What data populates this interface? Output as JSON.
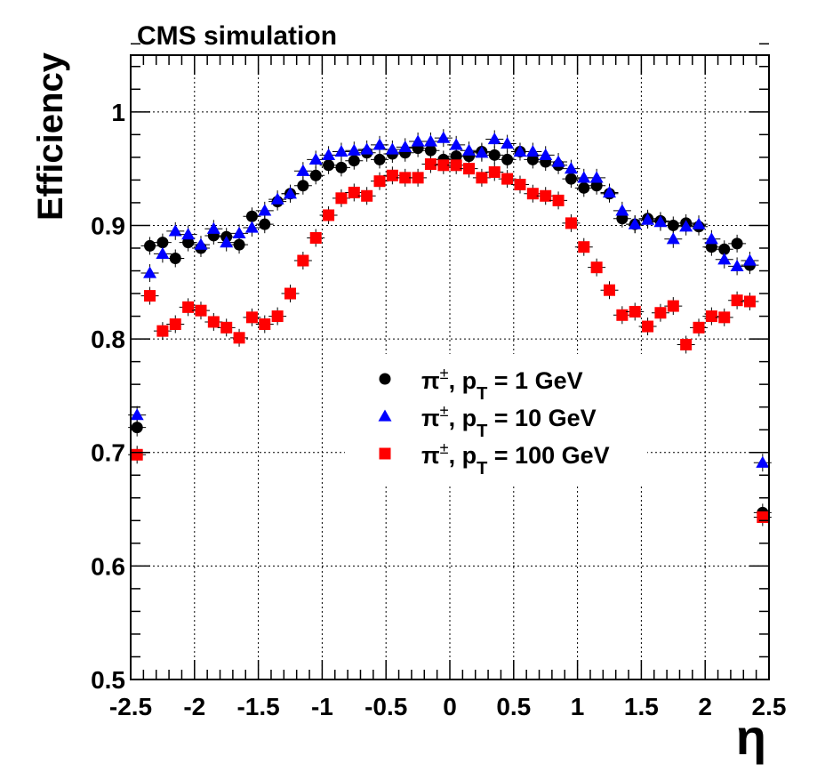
{
  "chart_data": {
    "type": "scatter",
    "title": "CMS simulation",
    "xlabel": "η",
    "ylabel": "Efficiency",
    "xlim": [
      -2.5,
      2.5
    ],
    "ylim": [
      0.5,
      1.05
    ],
    "grid": true,
    "legend_position": "center-right",
    "x_ticks": [
      "-2.5",
      "-2",
      "-1.5",
      "-1",
      "-0.5",
      "0",
      "0.5",
      "1",
      "1.5",
      "2",
      "2.5"
    ],
    "x_tick_values": [
      -2.5,
      -2,
      -1.5,
      -1,
      -0.5,
      0,
      0.5,
      1,
      1.5,
      2,
      2.5
    ],
    "y_ticks": [
      "0.5",
      "0.6",
      "0.7",
      "0.8",
      "0.9",
      "1"
    ],
    "y_tick_values": [
      0.5,
      0.6,
      0.7,
      0.8,
      0.9,
      1.0
    ],
    "x": [
      -2.45,
      -2.35,
      -2.25,
      -2.15,
      -2.05,
      -1.95,
      -1.85,
      -1.75,
      -1.65,
      -1.55,
      -1.45,
      -1.35,
      -1.25,
      -1.15,
      -1.05,
      -0.95,
      -0.85,
      -0.75,
      -0.65,
      -0.55,
      -0.45,
      -0.35,
      -0.25,
      -0.15,
      -0.05,
      0.05,
      0.15,
      0.25,
      0.35,
      0.45,
      0.55,
      0.65,
      0.75,
      0.85,
      0.95,
      1.05,
      1.15,
      1.25,
      1.35,
      1.45,
      1.55,
      1.65,
      1.75,
      1.85,
      1.95,
      2.05,
      2.15,
      2.25,
      2.35,
      2.45
    ],
    "series": [
      {
        "name_prefix": "π",
        "name_sup": "±",
        "name_p": ", p",
        "name_sub": "T",
        "name_suffix": " = 1 GeV",
        "marker": "circle",
        "color": "#000000",
        "values": [
          0.722,
          0.882,
          0.885,
          0.871,
          0.885,
          0.88,
          0.891,
          0.89,
          0.883,
          0.908,
          0.901,
          0.921,
          0.928,
          0.935,
          0.944,
          0.953,
          0.951,
          0.957,
          0.964,
          0.958,
          0.963,
          0.964,
          0.968,
          0.966,
          0.958,
          0.961,
          0.961,
          0.965,
          0.962,
          0.958,
          0.965,
          0.958,
          0.956,
          0.953,
          0.941,
          0.933,
          0.935,
          0.928,
          0.906,
          0.901,
          0.906,
          0.904,
          0.9,
          0.902,
          0.899,
          0.881,
          0.879,
          0.884,
          0.865,
          0.647
        ]
      },
      {
        "name_prefix": "π",
        "name_sup": "±",
        "name_p": ", p",
        "name_sub": "T",
        "name_suffix": " = 10 GeV",
        "marker": "triangle",
        "color": "#0000ff",
        "values": [
          0.733,
          0.858,
          0.875,
          0.895,
          0.892,
          0.883,
          0.897,
          0.885,
          0.893,
          0.898,
          0.913,
          0.923,
          0.928,
          0.948,
          0.958,
          0.962,
          0.965,
          0.966,
          0.967,
          0.971,
          0.967,
          0.969,
          0.974,
          0.974,
          0.977,
          0.971,
          0.966,
          0.964,
          0.976,
          0.972,
          0.965,
          0.965,
          0.962,
          0.956,
          0.95,
          0.942,
          0.942,
          0.929,
          0.913,
          0.901,
          0.905,
          0.903,
          0.888,
          0.899,
          0.901,
          0.888,
          0.87,
          0.864,
          0.869,
          0.691
        ]
      },
      {
        "name_prefix": "π",
        "name_sup": "±",
        "name_p": ", p",
        "name_sub": "T",
        "name_suffix": " = 100 GeV",
        "marker": "square",
        "color": "#ff0000",
        "values": [
          0.698,
          0.838,
          0.807,
          0.813,
          0.828,
          0.825,
          0.815,
          0.81,
          0.801,
          0.819,
          0.813,
          0.82,
          0.84,
          0.869,
          0.889,
          0.909,
          0.924,
          0.929,
          0.926,
          0.939,
          0.944,
          0.942,
          0.942,
          0.954,
          0.953,
          0.953,
          0.95,
          0.942,
          0.947,
          0.941,
          0.936,
          0.928,
          0.926,
          0.922,
          0.902,
          0.881,
          0.863,
          0.843,
          0.821,
          0.824,
          0.811,
          0.823,
          0.829,
          0.795,
          0.81,
          0.82,
          0.819,
          0.834,
          0.833,
          0.643
        ]
      }
    ]
  }
}
